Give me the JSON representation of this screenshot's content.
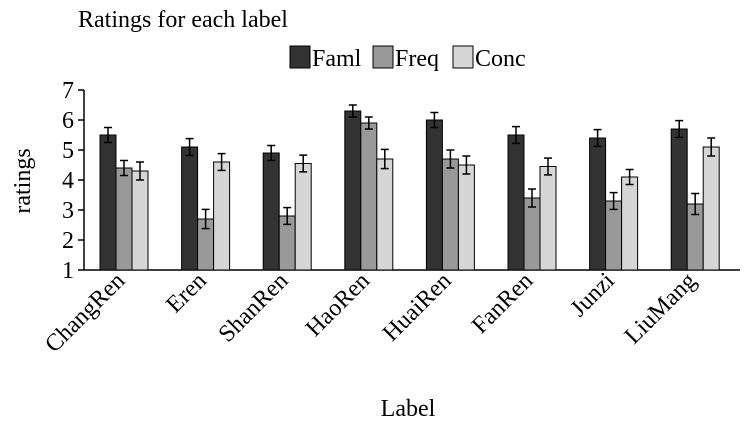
{
  "chart_data": {
    "type": "bar",
    "title": "Ratings for each label",
    "xlabel": "Label",
    "ylabel": "ratings",
    "ylim": [
      1,
      7
    ],
    "yticks": [
      1,
      2,
      3,
      4,
      5,
      6,
      7
    ],
    "grid": false,
    "legend": "top",
    "categories": [
      "ChangRen",
      "Eren",
      "ShanRen",
      "HaoRen",
      "HuaiRen",
      "FanRen",
      "Junzi",
      "LiuMang"
    ],
    "series": [
      {
        "name": "Faml",
        "color": "#333333",
        "values": [
          5.5,
          5.1,
          4.9,
          6.3,
          6.0,
          5.5,
          5.4,
          5.7
        ],
        "errors": [
          0.25,
          0.28,
          0.25,
          0.2,
          0.25,
          0.28,
          0.28,
          0.28
        ]
      },
      {
        "name": "Freq",
        "color": "#999999",
        "values": [
          4.4,
          2.7,
          2.8,
          5.9,
          4.7,
          3.4,
          3.3,
          3.2
        ],
        "errors": [
          0.25,
          0.32,
          0.28,
          0.2,
          0.3,
          0.3,
          0.28,
          0.35
        ]
      },
      {
        "name": "Conc",
        "color": "#d6d6d6",
        "values": [
          4.3,
          4.6,
          4.55,
          4.7,
          4.5,
          4.45,
          4.1,
          5.1
        ],
        "errors": [
          0.3,
          0.28,
          0.28,
          0.32,
          0.3,
          0.28,
          0.25,
          0.3
        ]
      }
    ]
  }
}
